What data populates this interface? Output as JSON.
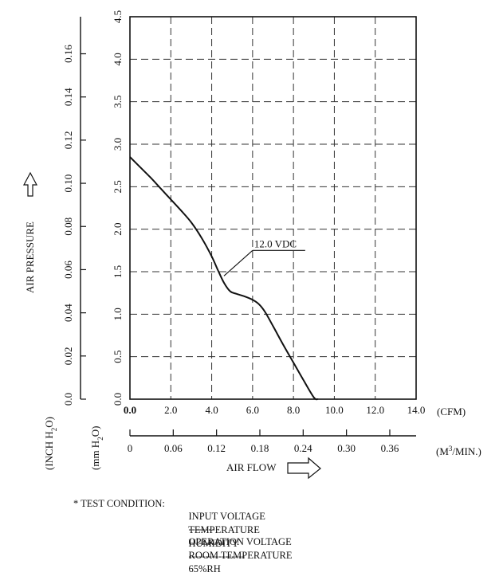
{
  "chart_data": {
    "type": "line",
    "title": "",
    "xlabel": "AIR FLOW",
    "ylabel": "AIR PRESSURE",
    "x_unit_cfm": "(CFM)",
    "x_unit_m3": "(M³/MIN.)",
    "y_unit_inch": "(INCH H₂O)",
    "y_unit_mm": "(mm H₂O)",
    "xlim": [
      0,
      14
    ],
    "ylim": [
      0,
      4.5
    ],
    "x_ticks_cfm": [
      "0.0",
      "2.0",
      "4.0",
      "6.0",
      "8.0",
      "10.0",
      "12.0",
      "14.0"
    ],
    "x_ticks_m3": [
      "0",
      "0.06",
      "0.12",
      "0.18",
      "0.24",
      "0.30",
      "0.36"
    ],
    "x_ticks_m3_values": [
      0,
      0.06,
      0.12,
      0.18,
      0.24,
      0.3,
      0.36
    ],
    "y_ticks_mm": [
      "0.0",
      "0.5",
      "1.0",
      "1.5",
      "2.0",
      "2.5",
      "3.0",
      "3.5",
      "4.0",
      "4.5"
    ],
    "y_ticks_mm_values": [
      0,
      0.5,
      1.0,
      1.5,
      2.0,
      2.5,
      3.0,
      3.5,
      4.0,
      4.5
    ],
    "y_ticks_inch": [
      "0.0",
      "0.02",
      "0.04",
      "0.06",
      "0.08",
      "0.10",
      "0.12",
      "0.14",
      "0.16"
    ],
    "y_ticks_inch_values": [
      0,
      0.02,
      0.04,
      0.06,
      0.08,
      0.1,
      0.12,
      0.14,
      0.16
    ],
    "grid": true,
    "series": [
      {
        "name": "12.0 VDC",
        "x": [
          0,
          0.5,
          1.0,
          1.5,
          2.0,
          2.5,
          3.0,
          3.5,
          4.0,
          4.3,
          4.6,
          4.9,
          5.2,
          5.6,
          6.0,
          6.3,
          6.6,
          7.0,
          7.5,
          8.0,
          8.5,
          9.0,
          9.2
        ],
        "y": [
          2.85,
          2.73,
          2.61,
          2.48,
          2.35,
          2.22,
          2.08,
          1.9,
          1.68,
          1.52,
          1.37,
          1.27,
          1.24,
          1.21,
          1.17,
          1.12,
          1.03,
          0.86,
          0.64,
          0.43,
          0.22,
          0.02,
          0.0
        ]
      }
    ]
  },
  "test_condition": {
    "prefix": "* TEST CONDITION:",
    "rows": [
      {
        "label": "INPUT VOLTAGE",
        "dashes": "--------",
        "value": "OPERATION VOLTAGE"
      },
      {
        "label": "TEMPERATURE",
        "dashes": "-----------",
        "value": "ROOM TEMPERATURE"
      },
      {
        "label": "HUMIDITY",
        "dashes": "-----------------",
        "value": "65%RH"
      }
    ]
  }
}
